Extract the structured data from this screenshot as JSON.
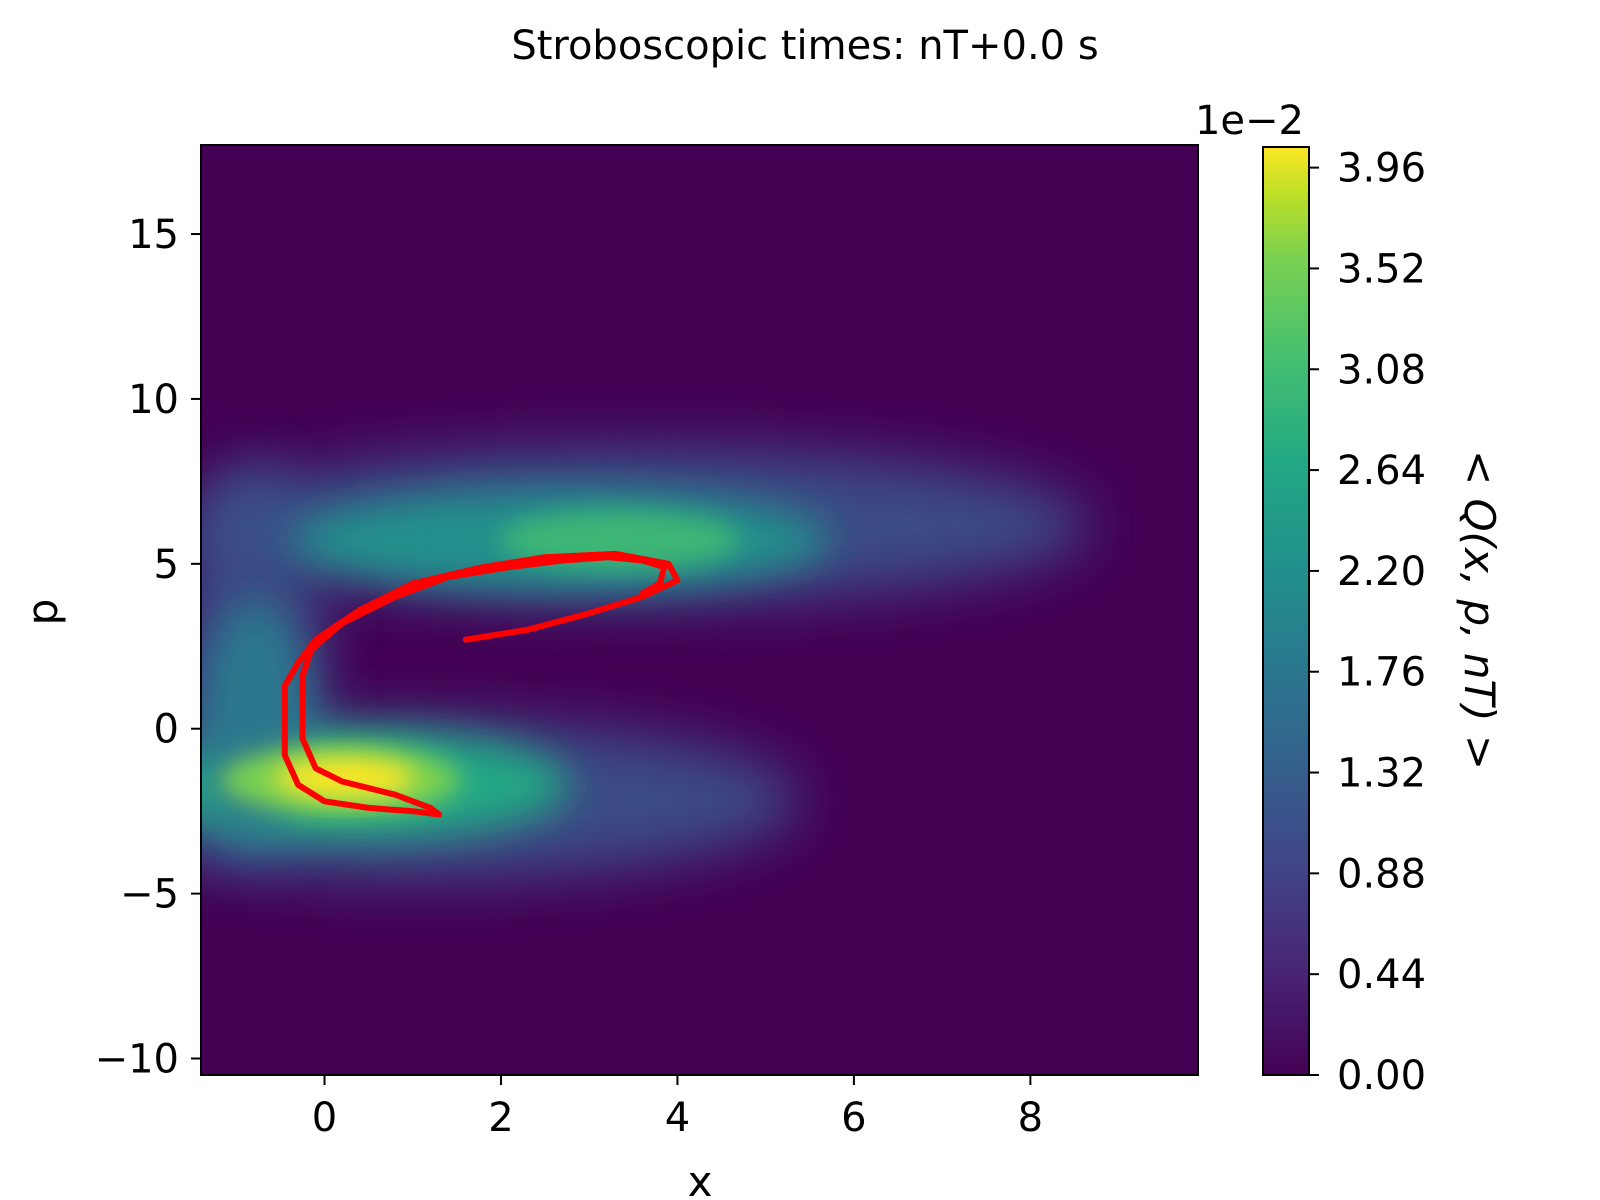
{
  "chart_data": {
    "type": "heatmap",
    "title": "Stroboscopic times: nT+0.0 s",
    "xlabel": "x",
    "ylabel": "p",
    "xlim": [
      -1.4,
      9.9
    ],
    "ylim": [
      -10.5,
      17.7
    ],
    "x_ticks": [
      0,
      2,
      4,
      6,
      8
    ],
    "x_tick_labels": [
      "0",
      "2",
      "4",
      "6",
      "8"
    ],
    "y_ticks": [
      -10,
      -5,
      0,
      5,
      10,
      15
    ],
    "y_tick_labels": [
      "−10",
      "−5",
      "0",
      "5",
      "10",
      "15"
    ],
    "grid": false,
    "colormap": "viridis",
    "heatmap_description": "S-shaped phase-space density; bright yellow peak near x≈0.5, p≈-2.3; secondary green lobe near x≈3.5, p≈5.5",
    "colorbar": {
      "label": "< Q(x, p, nT) >",
      "offset_text": "1e−2",
      "range": [
        0.0,
        4.05
      ],
      "ticks": [
        0.0,
        0.44,
        0.88,
        1.32,
        1.76,
        2.2,
        2.64,
        3.08,
        3.52,
        3.96
      ],
      "tick_labels": [
        "0.00",
        "0.44",
        "0.88",
        "1.32",
        "1.76",
        "2.20",
        "2.64",
        "3.08",
        "3.52",
        "3.96"
      ]
    },
    "overlay": {
      "type": "line",
      "color": "#ff0000",
      "description": "attractor trajectory points (red)",
      "x": [
        1.6,
        2.3,
        3.0,
        3.6,
        4.0,
        3.9,
        3.3,
        2.5,
        1.8,
        1.0,
        0.4,
        -0.1,
        -0.3,
        -0.45,
        -0.45,
        -0.3,
        0.0,
        0.5,
        1.0,
        1.3,
        1.2,
        0.8,
        0.2,
        -0.1,
        -0.25,
        -0.25,
        -0.15,
        0.2,
        0.8,
        1.4,
        2.1,
        2.7,
        3.2,
        3.6,
        3.85,
        3.8,
        3.6
      ],
      "y": [
        2.7,
        3.0,
        3.5,
        4.0,
        4.5,
        5.0,
        5.3,
        5.2,
        4.9,
        4.4,
        3.6,
        2.7,
        2.0,
        1.3,
        -0.8,
        -1.7,
        -2.2,
        -2.4,
        -2.5,
        -2.6,
        -2.4,
        -2.0,
        -1.6,
        -1.2,
        -0.3,
        1.6,
        2.4,
        3.2,
        4.0,
        4.6,
        4.9,
        5.1,
        5.2,
        5.1,
        4.9,
        4.4,
        4.1
      ]
    }
  }
}
